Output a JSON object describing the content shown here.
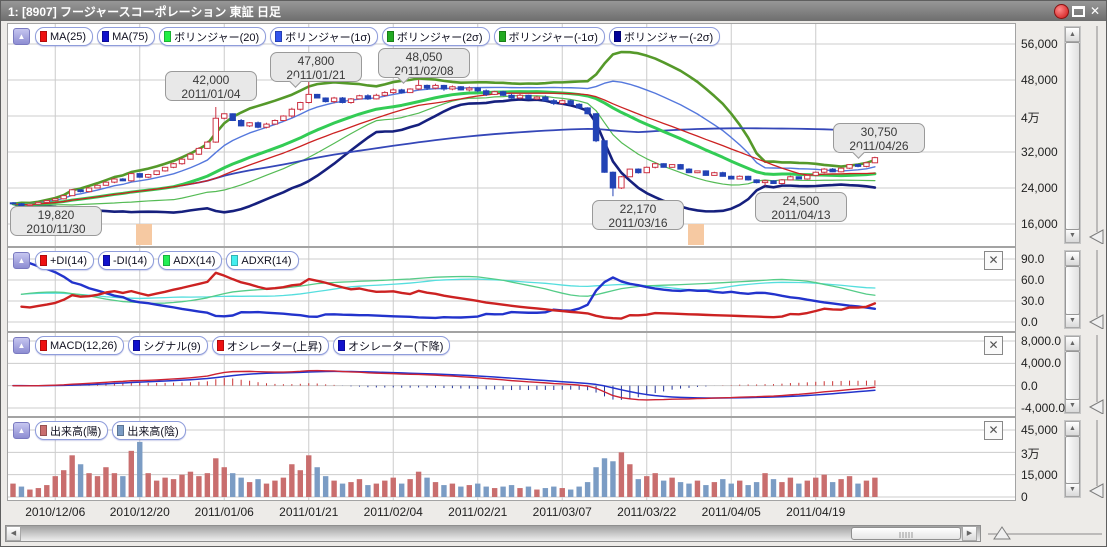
{
  "window": {
    "title": "1:  [8907] フージャースコーポレーション 東証 日足"
  },
  "panels": {
    "price": {
      "legend": [
        {
          "label": "MA(25)",
          "swatch": "#ee1111"
        },
        {
          "label": "MA(75)",
          "swatch": "#1111cc"
        },
        {
          "label": "ボリンジャー(20)",
          "swatch": "#22ee44"
        },
        {
          "label": "ボリンジャー(1σ)",
          "swatch": "#3355ee"
        },
        {
          "label": "ボリンジャー(2σ)",
          "swatch": "#22aa22"
        },
        {
          "label": "ボリンジャー(-1σ)",
          "swatch": "#22aa22"
        },
        {
          "label": "ボリンジャー(-2σ)",
          "swatch": "#000099"
        }
      ],
      "y_ticks": [
        {
          "label": "56,000",
          "value": 56000
        },
        {
          "label": "48,000",
          "value": 48000
        },
        {
          "label": "4万",
          "value": 40000
        },
        {
          "label": "32,000",
          "value": 32000
        },
        {
          "label": "24,000",
          "value": 24000
        },
        {
          "label": "16,000",
          "value": 16000
        }
      ],
      "closeable": false
    },
    "dmi": {
      "legend": [
        {
          "label": "+DI(14)",
          "swatch": "#ee1111"
        },
        {
          "label": "-DI(14)",
          "swatch": "#1111cc"
        },
        {
          "label": "ADX(14)",
          "swatch": "#22ee55"
        },
        {
          "label": "ADXR(14)",
          "swatch": "#44eeee"
        }
      ],
      "y_ticks": [
        {
          "label": "90.0",
          "value": 90
        },
        {
          "label": "60.0",
          "value": 60
        },
        {
          "label": "30.0",
          "value": 30
        },
        {
          "label": "0.0",
          "value": 0
        }
      ],
      "closeable": true
    },
    "macd": {
      "legend": [
        {
          "label": "MACD(12,26)",
          "swatch": "#ee1111"
        },
        {
          "label": "シグナル(9)",
          "swatch": "#1111cc"
        },
        {
          "label": "オシレーター(上昇)",
          "swatch": "#ee1111"
        },
        {
          "label": "オシレーター(下降)",
          "swatch": "#1111cc"
        }
      ],
      "y_ticks": [
        {
          "label": "8,000.0",
          "value": 8000
        },
        {
          "label": "4,000.0",
          "value": 4000
        },
        {
          "label": "0.0",
          "value": 0
        },
        {
          "label": "-4,000.0",
          "value": -4000
        }
      ],
      "closeable": true
    },
    "volume": {
      "legend": [
        {
          "label": "出来高(陽)",
          "swatch": "#c96e6e"
        },
        {
          "label": "出来高(陰)",
          "swatch": "#7b9cc4"
        }
      ],
      "y_ticks": [
        {
          "label": "45,000",
          "value": 45000
        },
        {
          "label": "3万",
          "value": 30000
        },
        {
          "label": "15,000",
          "value": 15000
        },
        {
          "label": "0",
          "value": 0
        }
      ],
      "closeable": true
    }
  },
  "x_ticks": [
    "2010/12/06",
    "2010/12/20",
    "2011/01/06",
    "2011/01/21",
    "2011/02/04",
    "2011/02/21",
    "2011/03/07",
    "2011/03/22",
    "2011/04/05",
    "2011/04/19"
  ],
  "callouts": [
    {
      "value": "19,820",
      "date": "2010/11/30"
    },
    {
      "value": "42,000",
      "date": "2011/01/04"
    },
    {
      "value": "47,800",
      "date": "2011/01/21"
    },
    {
      "value": "48,050",
      "date": "2011/02/08"
    },
    {
      "value": "22,170",
      "date": "2011/03/16"
    },
    {
      "value": "24,500",
      "date": "2011/04/13"
    },
    {
      "value": "30,750",
      "date": "2011/04/26"
    }
  ],
  "chart_data": {
    "type": "candlestick",
    "symbol": "8907",
    "security_name": "フージャースコーポレーション",
    "exchange": "東証",
    "interval": "日足",
    "x_tick_labels": [
      "2010/12/06",
      "2010/12/20",
      "2011/01/06",
      "2011/01/21",
      "2011/02/04",
      "2011/02/21",
      "2011/03/07",
      "2011/03/22",
      "2011/04/05",
      "2011/04/19"
    ],
    "x_tick_indices": [
      5,
      15,
      25,
      35,
      45,
      55,
      65,
      75,
      85,
      95
    ],
    "price_axis": {
      "ticks": [
        56000,
        48000,
        40000,
        32000,
        24000,
        16000
      ],
      "labels": [
        "56,000",
        "48,000",
        "4万",
        "32,000",
        "24,000",
        "16,000"
      ]
    },
    "dmi_axis": {
      "ticks": [
        90,
        60,
        30,
        0
      ]
    },
    "macd_axis": {
      "ticks": [
        8000,
        4000,
        0,
        -4000
      ]
    },
    "volume_axis": {
      "ticks": [
        45000,
        30000,
        15000,
        0
      ],
      "labels": [
        "45,000",
        "3万",
        "15,000",
        "0"
      ]
    },
    "key_points": [
      {
        "date": "2010/11/30",
        "price": 19820,
        "kind": "low"
      },
      {
        "date": "2011/01/04",
        "price": 42000,
        "kind": "high"
      },
      {
        "date": "2011/01/21",
        "price": 47800,
        "kind": "high"
      },
      {
        "date": "2011/02/08",
        "price": 48050,
        "kind": "high"
      },
      {
        "date": "2011/03/16",
        "price": 22170,
        "kind": "low"
      },
      {
        "date": "2011/04/13",
        "price": 24500,
        "kind": "low"
      },
      {
        "date": "2011/04/26",
        "price": 30750,
        "kind": "close"
      }
    ],
    "closes": [
      20500,
      20100,
      20400,
      20800,
      21200,
      21600,
      22300,
      23600,
      23200,
      24000,
      24600,
      25300,
      26000,
      25600,
      27200,
      26400,
      27000,
      27800,
      28600,
      29400,
      30400,
      31500,
      32800,
      34200,
      39500,
      40500,
      39000,
      37800,
      38500,
      37500,
      38200,
      39000,
      40000,
      41500,
      43000,
      44800,
      44000,
      43200,
      44000,
      43000,
      43800,
      44500,
      43800,
      44600,
      45200,
      45800,
      45200,
      46000,
      46800,
      46200,
      46800,
      46000,
      46500,
      45800,
      46200,
      45600,
      44800,
      45400,
      44600,
      44000,
      44600,
      43800,
      44200,
      43400,
      42800,
      43400,
      42600,
      41800,
      40500,
      34500,
      27500,
      24000,
      26500,
      28200,
      27400,
      28600,
      29400,
      28600,
      29200,
      28200,
      27400,
      27800,
      26800,
      27400,
      26600,
      26000,
      26600,
      25800,
      25200,
      25600,
      25000,
      25800,
      26500,
      26000,
      26800,
      27500,
      28200,
      27600,
      28400,
      29200,
      28800,
      29600,
      30750
    ],
    "volumes": [
      9000,
      7000,
      5000,
      6000,
      8000,
      14000,
      18000,
      28000,
      22000,
      16000,
      14000,
      20000,
      16000,
      14000,
      31000,
      37000,
      16000,
      11000,
      13000,
      12000,
      15000,
      17000,
      14000,
      16000,
      26000,
      20000,
      16000,
      13000,
      10000,
      12000,
      9000,
      11000,
      13000,
      22000,
      18000,
      28000,
      20000,
      14000,
      11000,
      9000,
      10000,
      12000,
      8000,
      9000,
      11000,
      13000,
      9000,
      12000,
      17000,
      13000,
      10000,
      8000,
      9000,
      7000,
      8000,
      9000,
      7000,
      6000,
      7000,
      8000,
      6000,
      7000,
      5000,
      6000,
      7000,
      6000,
      5000,
      7000,
      10000,
      20000,
      26000,
      24000,
      30000,
      22000,
      12000,
      14000,
      16000,
      11000,
      13000,
      10000,
      9000,
      11000,
      8000,
      10000,
      12000,
      9000,
      11000,
      8000,
      10000,
      16000,
      12000,
      10000,
      13000,
      9000,
      11000,
      13000,
      15000,
      10000,
      12000,
      14000,
      9000,
      11000,
      13000
    ],
    "colors": {
      "ma25": "#cc2222",
      "ma75": "#3547b8",
      "boll20": "#33cc55",
      "boll_p1": "#5578dd",
      "boll_p2": "#55992a",
      "boll_m1": "#55bb55",
      "boll_m2": "#16207e",
      "candle_up": "#cc3344",
      "candle_down": "#2243b5",
      "di_plus": "#cc2222",
      "di_minus": "#2233cc",
      "adx": "#55cc88",
      "adxr": "#55dede",
      "macd": "#cc2233",
      "signal": "#2233cc",
      "osc_up": "#cc3333",
      "osc_down": "#223399",
      "vol_up": "#c96e6e",
      "vol_down": "#7b9cc4",
      "highlight_marker": "#f6c9a2",
      "grid": "#cccccc"
    }
  }
}
